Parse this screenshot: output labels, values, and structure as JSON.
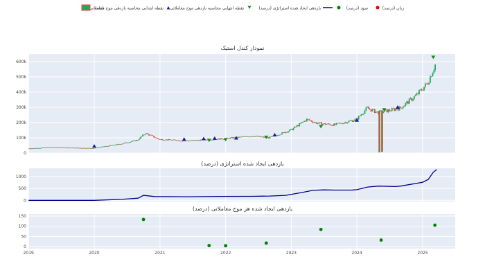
{
  "legend": {
    "price": "قیمت",
    "entry": "نقطه ابتدایی محاسبه بازدهی موج معاملاتی",
    "exit": "نقطه انتهایی محاسبه بازدهی موج معاملاتی",
    "strategy": "بازدهی ایجاد شده استراتژی (درصد)",
    "profit": "سود (درصد)",
    "loss": "زیان (درصد)"
  },
  "colors": {
    "plot_bg": "#e5ecf6",
    "candle_up": "#26a65b",
    "candle_down": "#e74c3c",
    "entry_marker": "#1a1aa6",
    "exit_marker": "#1e8c1e",
    "strategy_line": "#00008b",
    "profit_dot": "#008000",
    "loss_dot": "#e60000"
  },
  "chart_data": [
    {
      "type": "candlestick",
      "title": "نمودار کندل استیک",
      "y_tick_labels": [
        "0",
        "100k",
        "200k",
        "300k",
        "400k",
        "500k",
        "600k"
      ],
      "ylim": [
        0,
        650000
      ],
      "price_path": [
        [
          "2019-01-01",
          30000
        ],
        [
          "2019-06-01",
          38000
        ],
        [
          "2019-09-01",
          34000
        ],
        [
          "2020-01-01",
          32000
        ],
        [
          "2020-06-01",
          60000
        ],
        [
          "2020-09-01",
          85000
        ],
        [
          "2020-10-15",
          130000
        ],
        [
          "2021-01-01",
          90000
        ],
        [
          "2021-06-01",
          80000
        ],
        [
          "2022-01-01",
          95000
        ],
        [
          "2022-06-01",
          112000
        ],
        [
          "2022-09-01",
          100000
        ],
        [
          "2023-01-01",
          150000
        ],
        [
          "2023-04-01",
          220000
        ],
        [
          "2023-06-01",
          195000
        ],
        [
          "2023-09-01",
          185000
        ],
        [
          "2024-01-01",
          220000
        ],
        [
          "2024-03-01",
          295000
        ],
        [
          "2024-05-01",
          265000
        ],
        [
          "2024-09-01",
          295000
        ],
        [
          "2024-12-01",
          380000
        ],
        [
          "2025-02-01",
          460000
        ],
        [
          "2025-03-15",
          580000
        ]
      ],
      "outlier_candles": [
        {
          "date": "2024-05-05",
          "open": 275000,
          "close": 5000
        },
        {
          "date": "2024-05-20",
          "open": 278000,
          "close": 8000
        }
      ],
      "entries": [
        {
          "date": "2020-01-01",
          "price": 45000
        },
        {
          "date": "2021-05-15",
          "price": 90000
        },
        {
          "date": "2021-09-01",
          "price": 93000
        },
        {
          "date": "2021-11-01",
          "price": 96000
        },
        {
          "date": "2022-03-01",
          "price": 98000
        },
        {
          "date": "2022-10-01",
          "price": 118000
        },
        {
          "date": "2024-01-01",
          "price": 215000
        },
        {
          "date": "2024-08-15",
          "price": 300000
        }
      ],
      "exits": [
        {
          "date": "2021-10-01",
          "price": 85000
        },
        {
          "date": "2022-01-01",
          "price": 90000
        },
        {
          "date": "2022-08-15",
          "price": 105000
        },
        {
          "date": "2023-06-15",
          "price": 175000
        },
        {
          "date": "2024-06-01",
          "price": 285000
        },
        {
          "date": "2025-03-01",
          "price": 630000
        }
      ]
    },
    {
      "type": "line",
      "title": "بازدهی ایجاد شده استراتژی (درصد)",
      "y_tick_labels": [
        "0",
        "500",
        "1000"
      ],
      "ylim": [
        -50,
        1350
      ],
      "series": [
        {
          "x": [
            "2019-01-01",
            "2019-12-31",
            "2020-06-01",
            "2020-09-01",
            "2020-10-01",
            "2020-12-01",
            "2021-06-01",
            "2021-12-01",
            "2022-06-01",
            "2022-09-01",
            "2022-12-01",
            "2023-03-01",
            "2023-05-01",
            "2023-07-01",
            "2023-09-01",
            "2023-12-01",
            "2024-01-01",
            "2024-03-01",
            "2024-05-01",
            "2024-08-01",
            "2024-09-01",
            "2024-10-01",
            "2024-12-01",
            "2025-01-01",
            "2025-02-01",
            "2025-03-01",
            "2025-03-20"
          ],
          "y": [
            0,
            0,
            40,
            90,
            210,
            160,
            150,
            165,
            170,
            180,
            210,
            330,
            420,
            440,
            430,
            430,
            450,
            560,
            600,
            580,
            600,
            640,
            720,
            760,
            880,
            1180,
            1300
          ]
        }
      ]
    },
    {
      "type": "scatter",
      "title": "بازدهی ایجاد شده هر موج معاملاتی (درصد)",
      "y_tick_labels": [
        "0",
        "50",
        "100",
        "150"
      ],
      "ylim": [
        -10,
        160
      ],
      "x_tick_labels": [
        "2019",
        "2020",
        "2021",
        "2022",
        "2023",
        "2024",
        "2025"
      ],
      "profit_points": [
        {
          "date": "2020-10-01",
          "value": 133
        },
        {
          "date": "2021-10-01",
          "value": 5
        },
        {
          "date": "2022-01-01",
          "value": 4
        },
        {
          "date": "2022-08-15",
          "value": 17
        },
        {
          "date": "2023-06-15",
          "value": 84
        },
        {
          "date": "2024-05-15",
          "value": 32
        },
        {
          "date": "2025-03-10",
          "value": 105
        }
      ]
    }
  ]
}
